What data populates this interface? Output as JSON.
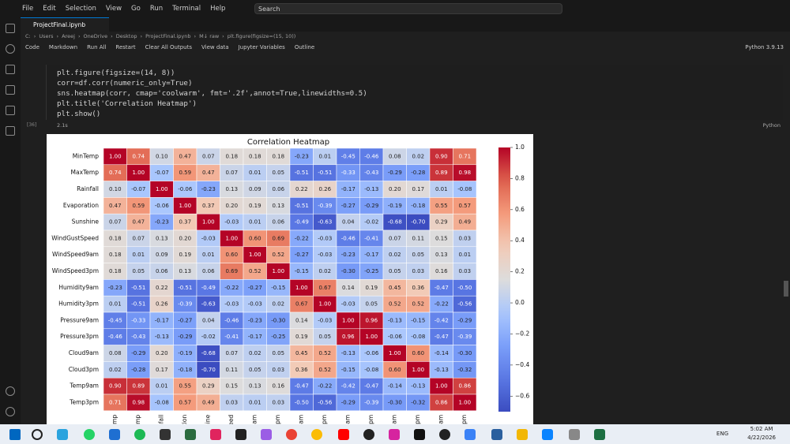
{
  "window": {
    "menu": [
      "File",
      "Edit",
      "Selection",
      "View",
      "Go",
      "Run",
      "Terminal",
      "Help"
    ],
    "search": "Search"
  },
  "tab": {
    "title": "ProjectFinal.ipynb"
  },
  "breadcrumb": [
    "C:",
    "Users",
    "Areej",
    "OneDrive",
    "Desktop",
    "ProjectFinal.ipynb",
    "M↓ raw",
    "plt.figure(figsize=(15, 10))"
  ],
  "toolbar": {
    "items": [
      "Code",
      "Markdown",
      "Run All",
      "Restart",
      "Clear All Outputs",
      "View data",
      "Jupyter Variables",
      "Outline"
    ],
    "kernel": "Python 3.9.13"
  },
  "cell": {
    "code": [
      "plt.figure(figsize=(14, 8))",
      "corr=df.corr(numeric_only=True)",
      "sns.heatmap(corr, cmap='coolwarm', fmt='.2f',annot=True,linewidths=0.5)",
      "plt.title('Correlation Heatmap')",
      "plt.show()"
    ],
    "count": "[36]",
    "duration": "2.1s",
    "language": "Python"
  },
  "taskbar": {
    "language": "ENG",
    "time": "5:02 AM",
    "date": "4/22/2026"
  },
  "chart_data": {
    "type": "heatmap",
    "title": "Correlation Heatmap",
    "colormap": "coolwarm",
    "zlim": [
      -0.7,
      1.0
    ],
    "categories": [
      "MinTemp",
      "MaxTemp",
      "Rainfall",
      "Evaporation",
      "Sunshine",
      "WindGustSpeed",
      "WindSpeed9am",
      "WindSpeed3pm",
      "Humidity9am",
      "Humidity3pm",
      "Pressure9am",
      "Pressure3pm",
      "Cloud9am",
      "Cloud3pm",
      "Temp9am",
      "Temp3pm"
    ],
    "values": [
      [
        1.0,
        0.74,
        0.1,
        0.47,
        0.07,
        0.18,
        0.18,
        0.18,
        -0.23,
        0.01,
        -0.45,
        -0.46,
        0.08,
        0.02,
        0.9,
        0.71
      ],
      [
        0.74,
        1.0,
        -0.07,
        0.59,
        0.47,
        0.07,
        0.01,
        0.05,
        -0.51,
        -0.51,
        -0.33,
        -0.43,
        -0.29,
        -0.28,
        0.89,
        0.98
      ],
      [
        0.1,
        -0.07,
        1.0,
        -0.06,
        -0.23,
        0.13,
        0.09,
        0.06,
        0.22,
        0.26,
        -0.17,
        -0.13,
        0.2,
        0.17,
        0.01,
        -0.08
      ],
      [
        0.47,
        0.59,
        -0.06,
        1.0,
        0.37,
        0.2,
        0.19,
        0.13,
        -0.51,
        -0.39,
        -0.27,
        -0.29,
        -0.19,
        -0.18,
        0.55,
        0.57
      ],
      [
        0.07,
        0.47,
        -0.23,
        0.37,
        1.0,
        -0.03,
        0.01,
        0.06,
        -0.49,
        -0.63,
        0.04,
        -0.02,
        -0.68,
        -0.7,
        0.29,
        0.49
      ],
      [
        0.18,
        0.07,
        0.13,
        0.2,
        -0.03,
        1.0,
        0.6,
        0.69,
        -0.22,
        -0.03,
        -0.46,
        -0.41,
        0.07,
        0.11,
        0.15,
        0.03
      ],
      [
        0.18,
        0.01,
        0.09,
        0.19,
        0.01,
        0.6,
        1.0,
        0.52,
        -0.27,
        -0.03,
        -0.23,
        -0.17,
        0.02,
        0.05,
        0.13,
        0.01
      ],
      [
        0.18,
        0.05,
        0.06,
        0.13,
        0.06,
        0.69,
        0.52,
        1.0,
        -0.15,
        0.02,
        -0.3,
        -0.25,
        0.05,
        0.03,
        0.16,
        0.03
      ],
      [
        -0.23,
        -0.51,
        0.22,
        -0.51,
        -0.49,
        -0.22,
        -0.27,
        -0.15,
        1.0,
        0.67,
        0.14,
        0.19,
        0.45,
        0.36,
        -0.47,
        -0.5
      ],
      [
        0.01,
        -0.51,
        0.26,
        -0.39,
        -0.63,
        -0.03,
        -0.03,
        0.02,
        0.67,
        1.0,
        -0.03,
        0.05,
        0.52,
        0.52,
        -0.22,
        -0.56
      ],
      [
        -0.45,
        -0.33,
        -0.17,
        -0.27,
        0.04,
        -0.46,
        -0.23,
        -0.3,
        0.14,
        -0.03,
        1.0,
        0.96,
        -0.13,
        -0.15,
        -0.42,
        -0.29
      ],
      [
        -0.46,
        -0.43,
        -0.13,
        -0.29,
        -0.02,
        -0.41,
        -0.17,
        -0.25,
        0.19,
        0.05,
        0.96,
        1.0,
        -0.06,
        -0.08,
        -0.47,
        -0.39
      ],
      [
        0.08,
        -0.29,
        0.2,
        -0.19,
        -0.68,
        0.07,
        0.02,
        0.05,
        0.45,
        0.52,
        -0.13,
        -0.06,
        1.0,
        0.6,
        -0.14,
        -0.3
      ],
      [
        0.02,
        -0.28,
        0.17,
        -0.18,
        -0.7,
        0.11,
        0.05,
        0.03,
        0.36,
        0.52,
        -0.15,
        -0.08,
        0.6,
        1.0,
        -0.13,
        -0.32
      ],
      [
        0.9,
        0.89,
        0.01,
        0.55,
        0.29,
        0.15,
        0.13,
        0.16,
        -0.47,
        -0.22,
        -0.42,
        -0.47,
        -0.14,
        -0.13,
        1.0,
        0.86
      ],
      [
        0.71,
        0.98,
        -0.08,
        0.57,
        0.49,
        0.03,
        0.01,
        0.03,
        -0.5,
        -0.56,
        -0.29,
        -0.39,
        -0.3,
        -0.32,
        0.86,
        1.0
      ]
    ],
    "value_labels": [
      [
        "1.00",
        "0.74",
        "0.10",
        "0.47",
        "0.07",
        "0.18",
        "0.18",
        "0.18",
        "-0.23",
        "0.01",
        "-0.45",
        "-0.46",
        "0.08",
        "0.02",
        "0.90",
        "0.71"
      ],
      [
        "0.74",
        "1.00",
        "-0.07",
        "0.59",
        "0.47",
        "0.07",
        "0.01",
        "0.05",
        "-0.51",
        "-0.51",
        "-0.33",
        "-0.43",
        "-0.29",
        "-0.28",
        "0.89",
        "0.98"
      ],
      [
        "0.10",
        "-0.07",
        "1.00",
        "-0.06",
        "-0.23",
        "0.13",
        "0.09",
        "0.06",
        "0.22",
        "0.26",
        "-0.17",
        "-0.13",
        "0.20",
        "0.17",
        "0.01",
        "-0.08"
      ],
      [
        "0.47",
        "0.59",
        "-0.06",
        "1.00",
        "0.37",
        "0.20",
        "0.19",
        "0.13",
        "-0.51",
        "-0.39",
        "-0.27",
        "-0.29",
        "-0.19",
        "-0.18",
        "0.55",
        "0.57"
      ],
      [
        "0.07",
        "0.47",
        "-0.23",
        "0.37",
        "1.00",
        "-0.03",
        "0.01",
        "0.06",
        "-0.49",
        "-0.63",
        "0.04",
        "-0.02",
        "-0.68",
        "-0.70",
        "0.29",
        "0.49"
      ],
      [
        "0.18",
        "0.07",
        "0.13",
        "0.20",
        "-0.03",
        "1.00",
        "0.60",
        "0.69",
        "-0.22",
        "-0.03",
        "-0.46",
        "-0.41",
        "0.07",
        "0.11",
        "0.15",
        "0.03"
      ],
      [
        "0.18",
        "0.01",
        "0.09",
        "0.19",
        "0.01",
        "0.60",
        "1.00",
        "0.52",
        "-0.27",
        "-0.03",
        "-0.23",
        "-0.17",
        "0.02",
        "0.05",
        "0.13",
        "0.01"
      ],
      [
        "0.18",
        "0.05",
        "0.06",
        "0.13",
        "0.06",
        "0.69",
        "0.52",
        "1.00",
        "-0.15",
        "0.02",
        "-0.30",
        "-0.25",
        "0.05",
        "0.03",
        "0.16",
        "0.03"
      ],
      [
        "-0.23",
        "-0.51",
        "0.22",
        "-0.51",
        "-0.49",
        "-0.22",
        "-0.27",
        "-0.15",
        "1.00",
        "0.67",
        "0.14",
        "0.19",
        "0.45",
        "0.36",
        "-0.47",
        "-0.50"
      ],
      [
        "0.01",
        "-0.51",
        "0.26",
        "-0.39",
        "-0.63",
        "-0.03",
        "-0.03",
        "0.02",
        "0.67",
        "1.00",
        "-0.03",
        "0.05",
        "0.52",
        "0.52",
        "-0.22",
        "-0.56"
      ],
      [
        "-0.45",
        "-0.33",
        "-0.17",
        "-0.27",
        "0.04",
        "-0.46",
        "-0.23",
        "-0.30",
        "0.14",
        "-0.03",
        "1.00",
        "0.96",
        "-0.13",
        "-0.15",
        "-0.42",
        "-0.29"
      ],
      [
        "-0.46",
        "-0.43",
        "-0.13",
        "-0.29",
        "-0.02",
        "-0.41",
        "-0.17",
        "-0.25",
        "0.19",
        "0.05",
        "0.96",
        "1.00",
        "-0.06",
        "-0.08",
        "-0.47",
        "-0.39"
      ],
      [
        "0.08",
        "-0.29",
        "0.20",
        "-0.19",
        "-0.68",
        "0.07",
        "0.02",
        "0.05",
        "0.45",
        "0.52",
        "-0.13",
        "-0.06",
        "1.00",
        "0.60",
        "-0.14",
        "-0.30"
      ],
      [
        "0.02",
        "-0.28",
        "0.17",
        "-0.18",
        "-0.70",
        "0.11",
        "0.05",
        "0.03",
        "0.36",
        "0.52",
        "-0.15",
        "-0.08",
        "0.60",
        "1.00",
        "-0.13",
        "-0.32"
      ],
      [
        "0.90",
        "0.89",
        "0.01",
        "0.55",
        "0.29",
        "0.15",
        "0.13",
        "0.16",
        "-0.47",
        "-0.22",
        "-0.42",
        "-0.47",
        "-0.14",
        "-0.13",
        "1.00",
        "0.86"
      ],
      [
        "0.71",
        "0.98",
        "-0.08",
        "0.57",
        "0.49",
        "0.03",
        "0.01",
        "0.03",
        "-0.50",
        "-0.56",
        "-0.29",
        "-0.39",
        "-0.30",
        "-0.32",
        "0.86",
        "1.00"
      ]
    ],
    "zticks": [
      {
        "value": 1.0,
        "label": "1.0"
      },
      {
        "value": 0.8,
        "label": "0.8"
      },
      {
        "value": 0.6,
        "label": "0.6"
      },
      {
        "value": 0.4,
        "label": "0.4"
      },
      {
        "value": 0.2,
        "label": "0.2"
      },
      {
        "value": 0.0,
        "label": "0.0"
      },
      {
        "value": -0.2,
        "label": "−0.2"
      },
      {
        "value": -0.4,
        "label": "−0.4"
      },
      {
        "value": -0.6,
        "label": "−0.6"
      }
    ]
  }
}
